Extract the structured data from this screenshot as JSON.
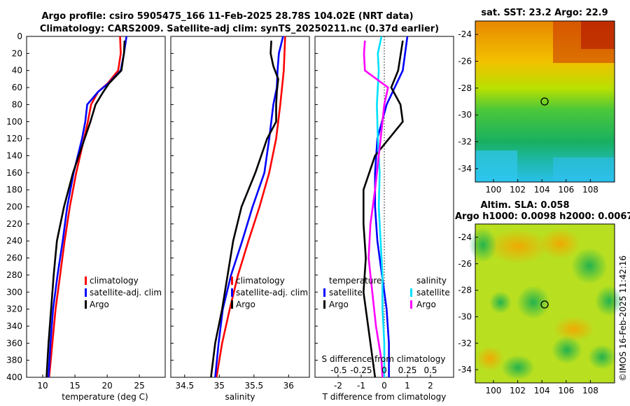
{
  "header": {
    "line1": "Argo profile: csiro 5905475_166 11-Feb-2025 28.78S 104.02E (NRT data)",
    "line2": "Climatology: CARS2009. Satellite-adj clim: synTS_20250211.nc (0.37d earlier)"
  },
  "colors": {
    "climatology": "#ff0000",
    "satellite": "#0000ff",
    "argo": "#000000",
    "sat_salinity": "#00e0ff",
    "argo_salinity": "#ff00ff"
  },
  "depth_ticks": [
    "0",
    "20",
    "40",
    "60",
    "80",
    "100",
    "120",
    "140",
    "160",
    "180",
    "200",
    "220",
    "240",
    "260",
    "280",
    "300",
    "320",
    "340",
    "360",
    "380",
    "400"
  ],
  "chart_data": [
    {
      "type": "line",
      "title": "",
      "xlabel": "temperature (deg C)",
      "ylabel": "",
      "xlim": [
        7.5,
        29
      ],
      "ylim": [
        400,
        0
      ],
      "xticks": [
        "10",
        "15",
        "20",
        "25"
      ],
      "legend": [
        "climatology",
        "satellite-adj. clim",
        "Argo"
      ],
      "series": [
        {
          "name": "climatology",
          "color": "#ff0000",
          "depth": [
            0,
            20,
            40,
            55,
            65,
            80,
            100,
            120,
            160,
            200,
            240,
            280,
            320,
            360,
            400
          ],
          "x": [
            22.0,
            22.1,
            21.7,
            20.1,
            18.6,
            17.5,
            17.0,
            16.4,
            15.2,
            14.2,
            13.4,
            12.7,
            12.0,
            11.5,
            11.0
          ]
        },
        {
          "name": "satellite-adj. clim",
          "color": "#0000ff",
          "depth": [
            0,
            20,
            40,
            55,
            65,
            80,
            100,
            120,
            160,
            200,
            240,
            280,
            320,
            360,
            400
          ],
          "x": [
            23.0,
            22.6,
            22.1,
            20.2,
            18.6,
            16.9,
            16.6,
            16.1,
            14.8,
            13.8,
            13.1,
            12.3,
            11.6,
            11.2,
            10.9
          ]
        },
        {
          "name": "Argo",
          "color": "#000000",
          "depth": [
            5,
            20,
            40,
            55,
            65,
            80,
            100,
            120,
            160,
            200,
            240,
            280,
            320,
            360,
            400
          ],
          "x": [
            22.7,
            22.6,
            22.2,
            20.3,
            19.4,
            18.2,
            17.4,
            16.5,
            14.7,
            13.3,
            12.2,
            11.7,
            11.3,
            10.9,
            10.6
          ]
        }
      ]
    },
    {
      "type": "line",
      "title": "",
      "xlabel": "salinity",
      "ylabel": "",
      "xlim": [
        34.3,
        36.3
      ],
      "ylim": [
        400,
        0
      ],
      "xticks": [
        "34.5",
        "35",
        "35.5",
        "36"
      ],
      "legend": [
        "climatology",
        "satellite-adj. clim",
        "Argo"
      ],
      "series": [
        {
          "name": "climatology",
          "color": "#ff0000",
          "depth": [
            0,
            40,
            80,
            120,
            160,
            200,
            240,
            280,
            320,
            360,
            400
          ],
          "x": [
            35.95,
            35.93,
            35.88,
            35.82,
            35.72,
            35.58,
            35.42,
            35.27,
            35.15,
            35.04,
            34.96
          ]
        },
        {
          "name": "satellite-adj. clim",
          "color": "#0000ff",
          "depth": [
            0,
            20,
            40,
            60,
            80,
            120,
            160,
            200,
            240,
            280,
            320,
            360,
            400
          ],
          "x": [
            35.92,
            35.86,
            35.84,
            35.83,
            35.78,
            35.72,
            35.65,
            35.48,
            35.33,
            35.17,
            35.05,
            34.99,
            34.94
          ]
        },
        {
          "name": "Argo",
          "color": "#000000",
          "depth": [
            5,
            20,
            35,
            50,
            65,
            80,
            100,
            120,
            160,
            200,
            240,
            280,
            320,
            360,
            400
          ],
          "x": [
            35.75,
            35.74,
            35.78,
            35.85,
            35.83,
            35.82,
            35.82,
            35.69,
            35.52,
            35.32,
            35.2,
            35.12,
            35.04,
            34.94,
            34.88
          ]
        }
      ]
    },
    {
      "type": "line",
      "title": "",
      "xlabel": "T difference from climatology",
      "xlabel_top": "S difference from climatology",
      "ylabel": "",
      "xlim": [
        -3,
        3
      ],
      "ylim": [
        400,
        0
      ],
      "xticks": [
        "-2",
        "-1",
        "0",
        "1",
        "2"
      ],
      "xticks_salinity": [
        "-0.5",
        "-0.25",
        "0",
        "0.25",
        "0.5"
      ],
      "legend_titles": [
        "temperature",
        "salinity"
      ],
      "legend": [
        "satellite",
        "Argo",
        "satellite",
        "Argo"
      ],
      "series": [
        {
          "name": "temperature satellite",
          "color": "#0000ff",
          "depth": [
            0,
            40,
            80,
            120,
            160,
            200,
            240,
            280,
            320,
            360,
            400
          ],
          "x": [
            1.0,
            0.8,
            0.1,
            -0.3,
            -0.4,
            -0.4,
            -0.3,
            -0.1,
            0.1,
            0.2,
            0.2
          ]
        },
        {
          "name": "temperature Argo",
          "color": "#000000",
          "depth": [
            5,
            40,
            60,
            80,
            100,
            140,
            180,
            220,
            260,
            300,
            340,
            380,
            400
          ],
          "x": [
            0.8,
            0.6,
            0.3,
            0.7,
            0.8,
            -0.4,
            -0.9,
            -0.9,
            -0.8,
            -0.9,
            -0.7,
            -0.5,
            -0.4
          ]
        },
        {
          "name": "salinity satellite",
          "color": "#00e0ff",
          "depth": [
            0,
            20,
            40,
            80,
            120,
            160,
            200,
            240,
            280,
            320,
            360,
            400
          ],
          "x": [
            -0.03,
            -0.07,
            -0.06,
            -0.08,
            -0.07,
            -0.05,
            -0.06,
            -0.04,
            -0.02,
            -0.02,
            0.0,
            0.0
          ]
        },
        {
          "name": "salinity Argo",
          "color": "#ff00ff",
          "depth": [
            5,
            20,
            40,
            60,
            80,
            100,
            140,
            180,
            220,
            260,
            300,
            340,
            380,
            400
          ],
          "x": [
            -0.21,
            -0.22,
            -0.21,
            0.04,
            0.0,
            -0.02,
            -0.06,
            -0.1,
            -0.15,
            -0.17,
            -0.13,
            -0.09,
            -0.03,
            -0.02
          ]
        }
      ]
    },
    {
      "type": "heatmap",
      "title": "sat. SST: 23.2 Argo: 22.9",
      "xticks": [
        "100",
        "102",
        "104",
        "106",
        "108"
      ],
      "yticks": [
        "-24",
        "-26",
        "-28",
        "-30",
        "-32",
        "-34"
      ],
      "xlim": [
        98.5,
        110
      ],
      "ylim": [
        -35,
        -23
      ],
      "marker": {
        "lon": 104.02,
        "lat": -28.78
      }
    },
    {
      "type": "heatmap",
      "title_line1": "Altim. SLA: 0.058",
      "title_line2": "Argo h1000: 0.0098 h2000: 0.0067",
      "xticks": [
        "100",
        "102",
        "104",
        "106",
        "108"
      ],
      "yticks": [
        "-24",
        "-26",
        "-28",
        "-30",
        "-32",
        "-34"
      ],
      "xlim": [
        98.5,
        110
      ],
      "ylim": [
        -35,
        -23
      ],
      "marker": {
        "lon": 104.02,
        "lat": -28.78
      }
    }
  ],
  "footer": {
    "stamp": "©IMOS 16-Feb-2025 11:42:16"
  }
}
